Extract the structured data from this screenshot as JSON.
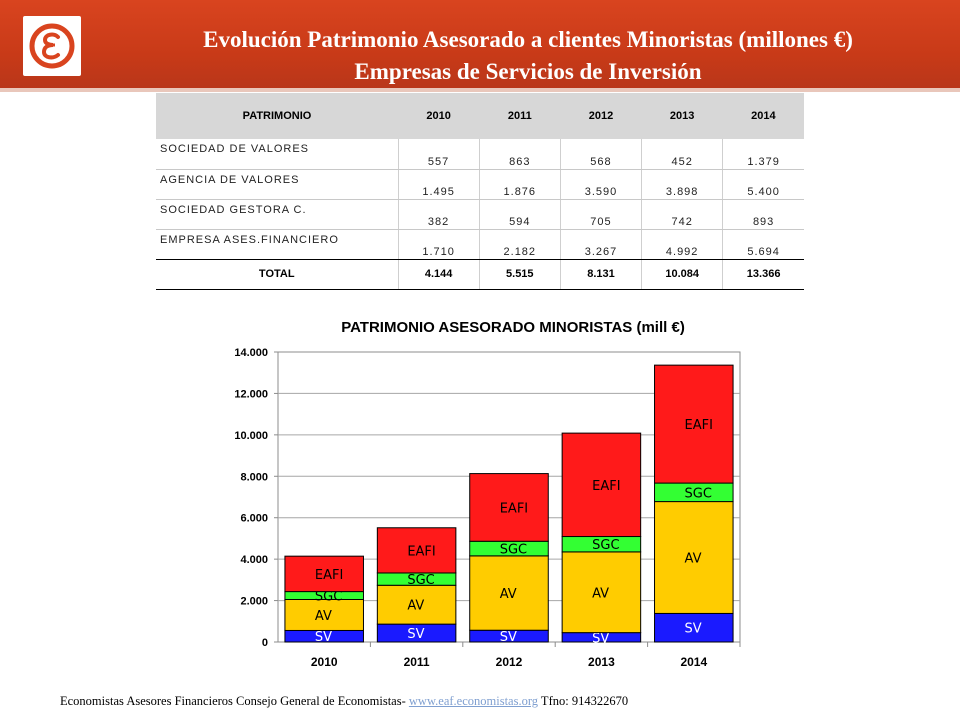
{
  "header": {
    "title_line1": "Evolución Patrimonio Asesorado a clientes Minoristas (millones €)",
    "title_line2": "Empresas de Servicios de Inversión"
  },
  "table": {
    "headers": [
      "PATRIMONIO",
      "2010",
      "2011",
      "2012",
      "2013",
      "2014"
    ],
    "rows": [
      {
        "label": "SOCIEDAD DE VALORES",
        "values": [
          "557",
          "863",
          "568",
          "452",
          "1.379"
        ]
      },
      {
        "label": "AGENCIA DE VALORES",
        "values": [
          "1.495",
          "1.876",
          "3.590",
          "3.898",
          "5.400"
        ]
      },
      {
        "label": "SOCIEDAD GESTORA C.",
        "values": [
          "382",
          "594",
          "705",
          "742",
          "893"
        ]
      },
      {
        "label": "EMPRESA ASES.FINANCIERO",
        "values": [
          "1.710",
          "2.182",
          "3.267",
          "4.992",
          "5.694"
        ]
      }
    ],
    "total": {
      "label": "TOTAL",
      "values": [
        "4.144",
        "5.515",
        "8.131",
        "10.084",
        "13.366"
      ]
    }
  },
  "chart_data": {
    "type": "bar",
    "stacked": true,
    "title": "PATRIMONIO ASESORADO MINORISTAS (mill €)",
    "categories": [
      "2010",
      "2011",
      "2012",
      "2013",
      "2014"
    ],
    "series": [
      {
        "name": "SV",
        "color": "#1a1aff",
        "values": [
          557,
          863,
          568,
          452,
          1379
        ]
      },
      {
        "name": "AV",
        "color": "#ffcc00",
        "values": [
          1495,
          1876,
          3590,
          3898,
          5400
        ]
      },
      {
        "name": "SGC",
        "color": "#33ff33",
        "values": [
          382,
          594,
          705,
          742,
          893
        ]
      },
      {
        "name": "EAFI",
        "color": "#ff1a1a",
        "values": [
          1710,
          2182,
          3267,
          4992,
          5694
        ]
      }
    ],
    "ylim": [
      0,
      14000
    ],
    "yticks": [
      0,
      2000,
      4000,
      6000,
      8000,
      10000,
      12000,
      14000
    ],
    "ytick_labels": [
      "0",
      "2.000",
      "4.000",
      "6.000",
      "8.000",
      "10.000",
      "12.000",
      "14.000"
    ],
    "grid": true,
    "legend": "none"
  },
  "footer": {
    "text_before": "Economistas Asesores Financieros Consejo General de Economistas- ",
    "link": "www.eaf.economistas.org",
    "text_after": " Tfno: 914322670"
  },
  "colors": {
    "banner": "#c83a18",
    "logo_glyph": "#d9441f"
  },
  "logo": {
    "icon": "epsilon-logo-icon"
  }
}
